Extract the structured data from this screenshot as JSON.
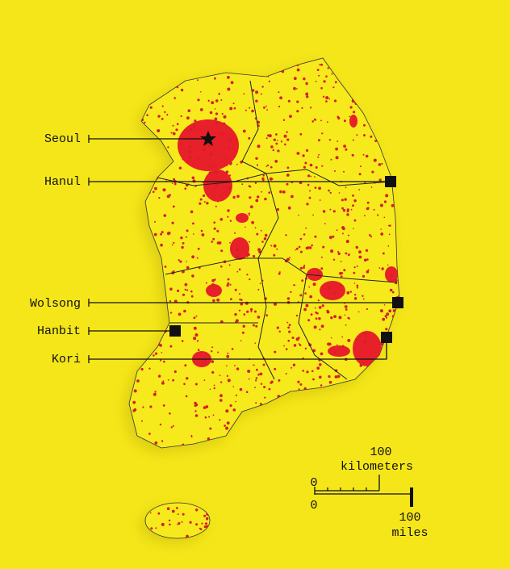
{
  "labels": [
    "Seoul",
    "Hanul",
    "Wolsong",
    "Hanbit",
    "Kori"
  ],
  "scale": {
    "km_zero": "0",
    "km_value": "100",
    "km_unit": "kilometers",
    "mi_zero": "0",
    "mi_value": "100",
    "mi_unit": "miles"
  }
}
